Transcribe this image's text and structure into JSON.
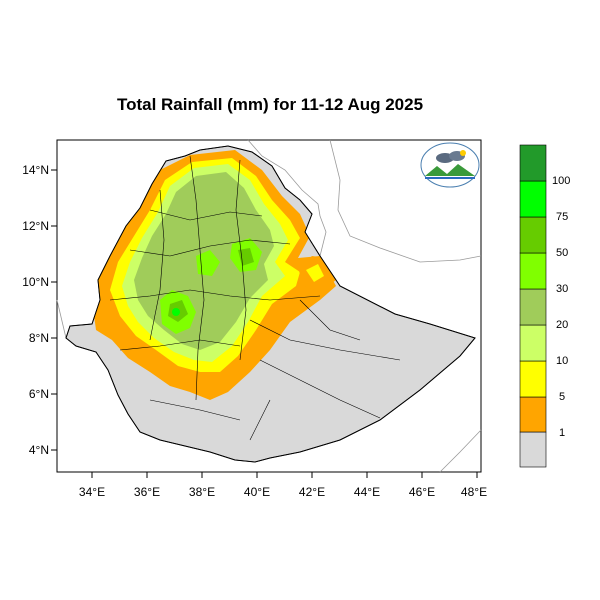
{
  "title": "Total Rainfall (mm) for 11-12 Aug 2025",
  "map": {
    "lon_ticks": [
      "34°E",
      "36°E",
      "38°E",
      "40°E",
      "42°E",
      "44°E",
      "46°E",
      "48°E"
    ],
    "lat_ticks": [
      "14°N",
      "12°N",
      "10°N",
      "8°N",
      "6°N",
      "4°N"
    ]
  },
  "legend": {
    "thresholds": [
      "1",
      "5",
      "10",
      "20",
      "30",
      "50",
      "75",
      "100"
    ],
    "colors": [
      "#d9d9d9",
      "#ffa500",
      "#ffff00",
      "#ccff66",
      "#a0cc5a",
      "#80ff00",
      "#66cc00",
      "#00ff00",
      "#229a2a"
    ]
  },
  "colors": {
    "no_rain": "#d9d9d9",
    "light_orange": "#ffa500",
    "yellow": "#ffff00",
    "light_green": "#ccff66",
    "olive_green": "#a0cc5a",
    "bright_green": "#80ff00",
    "mid_green": "#66cc00",
    "lime": "#00ff00",
    "dark_green": "#229a2a"
  },
  "icons": {
    "logo": "ethiopian-meteorology-institute-logo"
  }
}
